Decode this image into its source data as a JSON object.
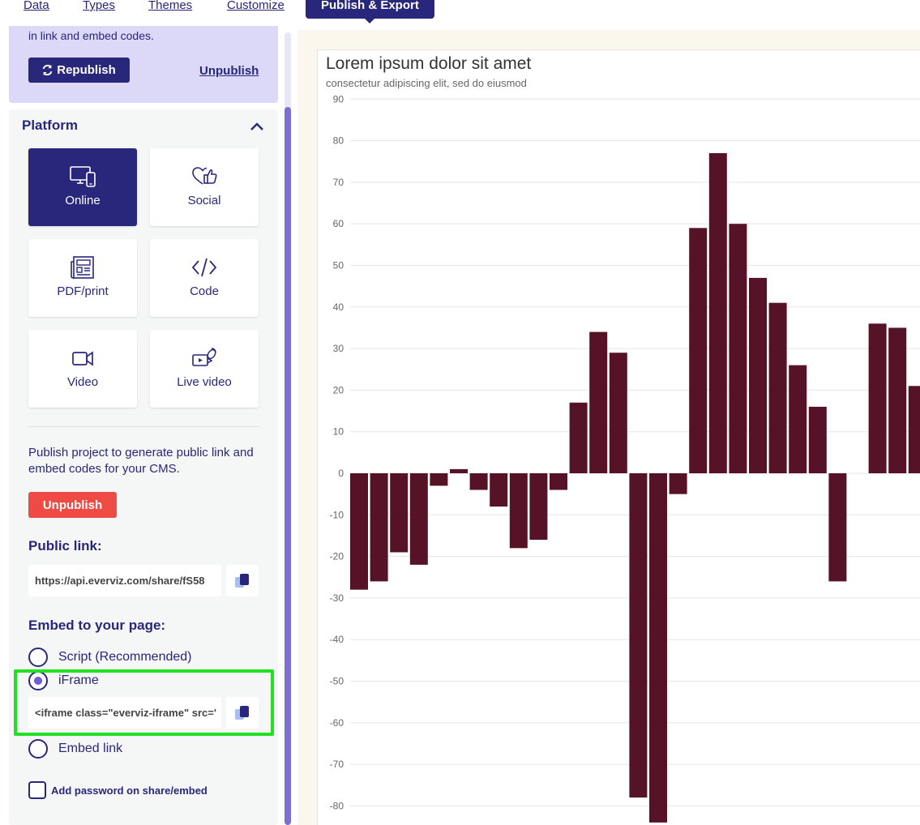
{
  "nav": {
    "tabs": [
      {
        "label": "Data"
      },
      {
        "label": "Types"
      },
      {
        "label": "Themes"
      },
      {
        "label": "Customize"
      },
      {
        "label": "Publish & Export"
      }
    ]
  },
  "republish": {
    "note": "in link and embed codes.",
    "republish_label": "Republish",
    "unpublish_label": "Unpublish"
  },
  "platform": {
    "title": "Platform",
    "tiles": [
      {
        "label": "Online",
        "icon": "devices-icon"
      },
      {
        "label": "Social",
        "icon": "social-icon"
      },
      {
        "label": "PDF/print",
        "icon": "newspaper-icon"
      },
      {
        "label": "Code",
        "icon": "code-icon"
      },
      {
        "label": "Video",
        "icon": "video-camera-icon"
      },
      {
        "label": "Live video",
        "icon": "live-video-icon"
      }
    ],
    "active": "Online"
  },
  "publish": {
    "note": "Publish project to generate public link and embed codes for your CMS.",
    "unpublish_label": "Unpublish",
    "public_link_label": "Public link:",
    "public_link_value": "https://api.everviz.com/share/fS58",
    "embed_label": "Embed to your page:",
    "options": [
      {
        "label": "Script (Recommended)",
        "checked": false
      },
      {
        "label": "iFrame",
        "checked": true
      },
      {
        "label": "Embed link",
        "checked": false
      }
    ],
    "iframe_code": "<iframe class=\"everviz-iframe\" src='",
    "password_label": "Add password on share/embed"
  },
  "preview": {
    "title": "Lorem ipsum dolor sit amet",
    "subtitle": "consectetur adipiscing elit, sed do eiusmod"
  },
  "colors": {
    "primary": "#28277c",
    "bar": "#561226",
    "danger": "#ef4a44",
    "highlight": "#22e022"
  },
  "chart_data": {
    "type": "bar",
    "title": "Lorem ipsum dolor sit amet",
    "subtitle": "consectetur adipiscing elit, sed do eiusmod",
    "xlabel": "",
    "ylabel": "",
    "yticks": [
      90,
      80,
      70,
      60,
      50,
      40,
      30,
      20,
      10,
      0,
      -10,
      -20,
      -30,
      -40,
      -50,
      -60,
      -70,
      -80
    ],
    "ylim": [
      -84,
      90
    ],
    "values": [
      -28,
      -26,
      -19,
      -22,
      -3,
      1,
      -4,
      -8,
      -18,
      -16,
      -4,
      17,
      34,
      29,
      -78,
      -84,
      -5,
      59,
      77,
      60,
      47,
      41,
      26,
      16,
      -26,
      0,
      36,
      35,
      21
    ],
    "grid": true,
    "legend": "none"
  }
}
